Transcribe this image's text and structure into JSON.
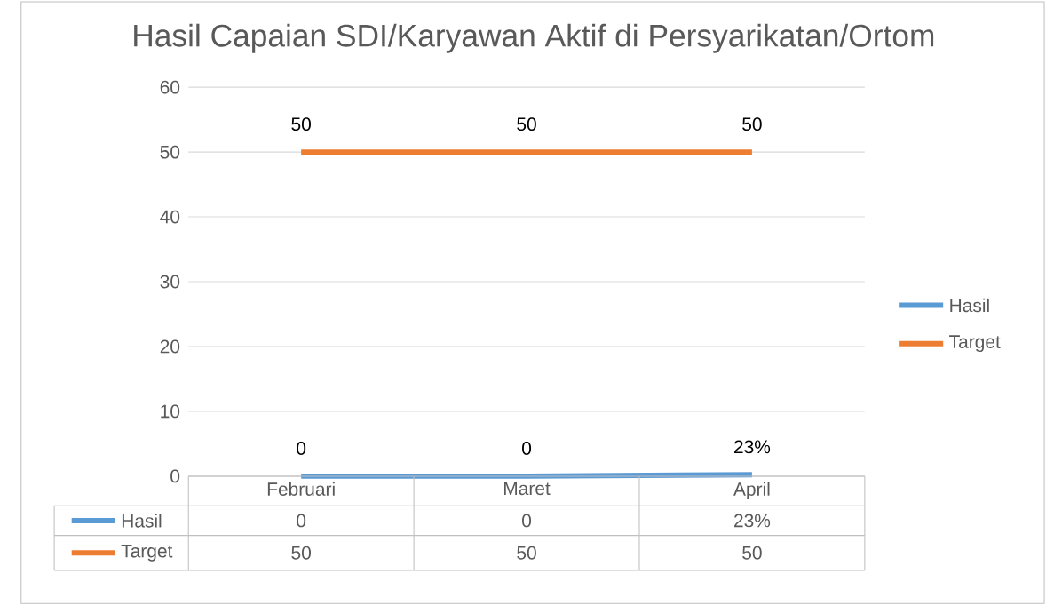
{
  "chart_data": {
    "type": "line",
    "title": "Hasil Capaian SDI/Karyawan Aktif di Persyarikatan/Ortom",
    "categories": [
      "Februari",
      "Maret",
      "April"
    ],
    "series": [
      {
        "name": "Hasil",
        "color": "#5b9bd5",
        "values": [
          0,
          0,
          0.23
        ],
        "value_labels": [
          "0",
          "0",
          "23%"
        ]
      },
      {
        "name": "Target",
        "color": "#ed7d31",
        "values": [
          50,
          50,
          50
        ],
        "value_labels": [
          "50",
          "50",
          "50"
        ]
      }
    ],
    "ylim": [
      0,
      60
    ],
    "yticks": [
      0,
      10,
      20,
      30,
      40,
      50,
      60
    ],
    "grid": "y",
    "legend": "right",
    "marker": "none",
    "line_style": "solid"
  }
}
